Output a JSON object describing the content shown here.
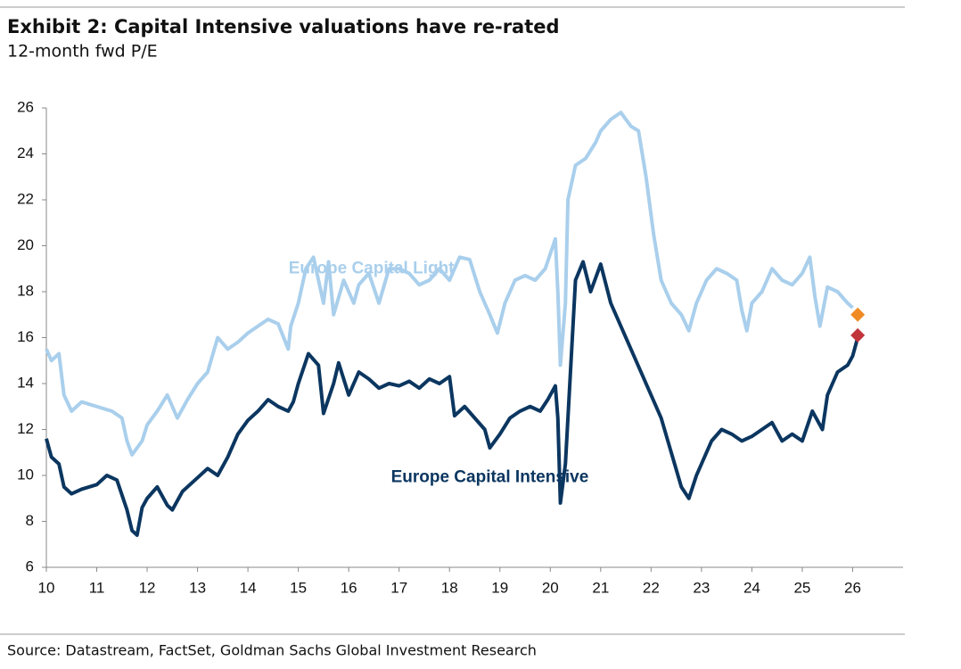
{
  "chart_data": {
    "type": "line",
    "title": "Exhibit 2: Capital Intensive valuations have re-rated",
    "subtitle": "12-month fwd P/E",
    "source": "Source: Datastream, FactSet, Goldman Sachs Global Investment Research",
    "xlim": [
      10,
      27
    ],
    "xticks": [
      10,
      11,
      12,
      13,
      14,
      15,
      16,
      17,
      18,
      19,
      20,
      21,
      22,
      23,
      24,
      25,
      26
    ],
    "ylim": [
      6,
      26
    ],
    "yticks": [
      6,
      8,
      10,
      12,
      14,
      16,
      18,
      20,
      22,
      24,
      26
    ],
    "grid": false,
    "series": [
      {
        "name": "Europe Capital Light",
        "color": "#a9cfec",
        "x": [
          10.0,
          10.1,
          10.25,
          10.35,
          10.5,
          10.7,
          11.0,
          11.3,
          11.5,
          11.6,
          11.7,
          11.9,
          12.0,
          12.2,
          12.4,
          12.6,
          12.8,
          13.0,
          13.2,
          13.4,
          13.6,
          13.8,
          14.0,
          14.2,
          14.4,
          14.6,
          14.8,
          14.85,
          15.0,
          15.15,
          15.3,
          15.5,
          15.6,
          15.7,
          15.9,
          16.1,
          16.2,
          16.4,
          16.6,
          16.8,
          17.0,
          17.2,
          17.4,
          17.6,
          17.8,
          18.0,
          18.2,
          18.4,
          18.6,
          18.8,
          18.95,
          19.1,
          19.3,
          19.5,
          19.7,
          19.9,
          20.1,
          20.15,
          20.2,
          20.3,
          20.35,
          20.5,
          20.7,
          20.9,
          21.0,
          21.2,
          21.4,
          21.6,
          21.75,
          21.9,
          22.05,
          22.2,
          22.4,
          22.6,
          22.75,
          22.9,
          23.1,
          23.3,
          23.5,
          23.7,
          23.8,
          23.9,
          24.0,
          24.2,
          24.4,
          24.6,
          24.8,
          25.0,
          25.15,
          25.25,
          25.35,
          25.5,
          25.7,
          25.9,
          26.0
        ],
        "values": [
          15.5,
          15.0,
          15.3,
          13.5,
          12.8,
          13.2,
          13.0,
          12.8,
          12.5,
          11.5,
          10.9,
          11.5,
          12.2,
          12.8,
          13.5,
          12.5,
          13.3,
          14.0,
          14.5,
          16.0,
          15.5,
          15.8,
          16.2,
          16.5,
          16.8,
          16.6,
          15.5,
          16.5,
          17.5,
          19.0,
          19.5,
          17.5,
          19.3,
          17.0,
          18.5,
          17.5,
          18.3,
          18.8,
          17.5,
          19.0,
          19.0,
          18.8,
          18.3,
          18.5,
          19.0,
          18.5,
          19.5,
          19.4,
          18.0,
          17.0,
          16.2,
          17.5,
          18.5,
          18.7,
          18.5,
          19.0,
          20.3,
          18.0,
          14.8,
          17.5,
          22.0,
          23.5,
          23.8,
          24.5,
          25.0,
          25.5,
          25.8,
          25.2,
          25.0,
          23.0,
          20.5,
          18.5,
          17.5,
          17.0,
          16.3,
          17.5,
          18.5,
          19.0,
          18.8,
          18.5,
          17.2,
          16.3,
          17.5,
          18.0,
          19.0,
          18.5,
          18.3,
          18.8,
          19.5,
          17.8,
          16.5,
          18.2,
          18.0,
          17.5,
          17.3
        ],
        "end_marker": {
          "x": 26.1,
          "y": 17.0,
          "color": "#f08a24"
        }
      },
      {
        "name": "Europe Capital Intensive",
        "color": "#0b3660",
        "x": [
          10.0,
          10.1,
          10.25,
          10.35,
          10.5,
          10.7,
          11.0,
          11.2,
          11.4,
          11.6,
          11.7,
          11.8,
          11.9,
          12.0,
          12.2,
          12.4,
          12.5,
          12.7,
          13.0,
          13.2,
          13.4,
          13.6,
          13.8,
          14.0,
          14.2,
          14.4,
          14.6,
          14.8,
          14.9,
          15.0,
          15.2,
          15.4,
          15.5,
          15.7,
          15.8,
          16.0,
          16.2,
          16.4,
          16.6,
          16.8,
          17.0,
          17.2,
          17.4,
          17.6,
          17.8,
          18.0,
          18.1,
          18.3,
          18.5,
          18.7,
          18.8,
          19.0,
          19.2,
          19.4,
          19.6,
          19.8,
          19.95,
          20.1,
          20.15,
          20.2,
          20.3,
          20.4,
          20.5,
          20.65,
          20.8,
          20.9,
          21.0,
          21.2,
          21.4,
          21.6,
          21.8,
          22.0,
          22.2,
          22.4,
          22.6,
          22.75,
          22.9,
          23.0,
          23.2,
          23.4,
          23.6,
          23.8,
          24.0,
          24.2,
          24.4,
          24.6,
          24.8,
          25.0,
          25.2,
          25.4,
          25.5,
          25.7,
          25.9,
          26.0,
          26.1
        ],
        "values": [
          11.6,
          10.8,
          10.5,
          9.5,
          9.2,
          9.4,
          9.6,
          10.0,
          9.8,
          8.5,
          7.6,
          7.4,
          8.6,
          9.0,
          9.5,
          8.7,
          8.5,
          9.3,
          9.9,
          10.3,
          10.0,
          10.8,
          11.8,
          12.4,
          12.8,
          13.3,
          13.0,
          12.8,
          13.2,
          14.0,
          15.3,
          14.8,
          12.7,
          14.0,
          14.9,
          13.5,
          14.5,
          14.2,
          13.8,
          14.0,
          13.9,
          14.1,
          13.8,
          14.2,
          14.0,
          14.3,
          12.6,
          13.0,
          12.5,
          12.0,
          11.2,
          11.8,
          12.5,
          12.8,
          13.0,
          12.8,
          13.3,
          13.9,
          12.5,
          8.8,
          10.5,
          14.5,
          18.5,
          19.3,
          18.0,
          18.6,
          19.2,
          17.5,
          16.5,
          15.5,
          14.5,
          13.5,
          12.5,
          11.0,
          9.5,
          9.0,
          10.0,
          10.5,
          11.5,
          12.0,
          11.8,
          11.5,
          11.7,
          12.0,
          12.3,
          11.5,
          11.8,
          11.5,
          12.8,
          12.0,
          13.5,
          14.5,
          14.8,
          15.2,
          16.0
        ],
        "end_marker": {
          "x": 26.1,
          "y": 16.1,
          "color": "#c0343a"
        }
      }
    ]
  }
}
